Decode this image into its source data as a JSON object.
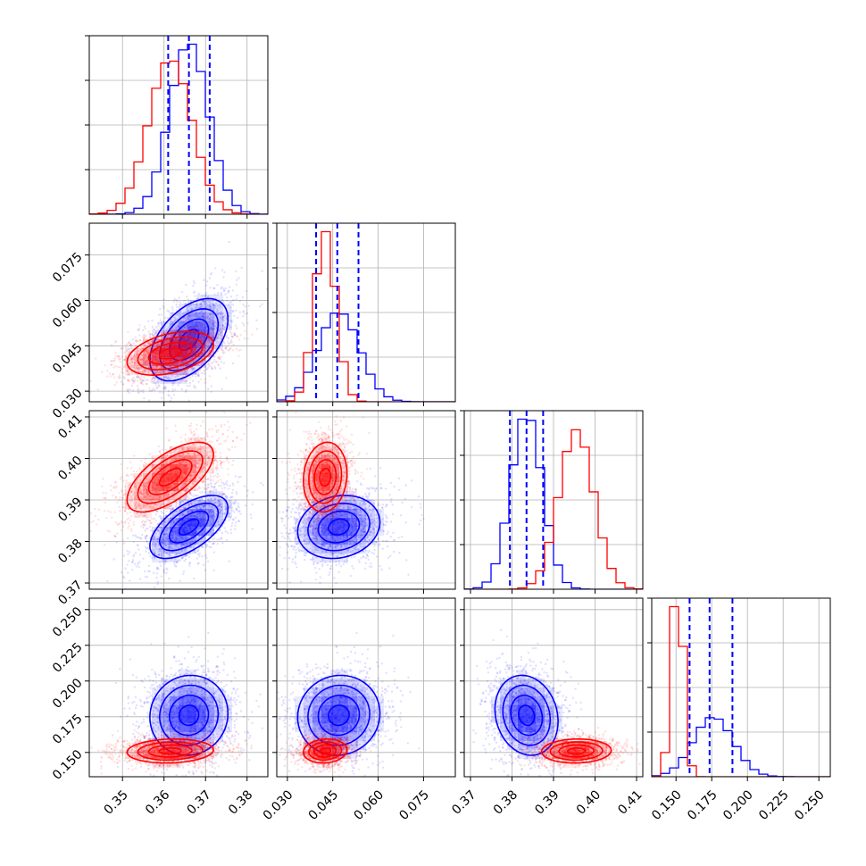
{
  "chart_data": {
    "type": "corner",
    "grid": true,
    "parameters": [
      {
        "range": [
          0.342,
          0.385
        ],
        "ticks": [
          0.35,
          0.36,
          0.37,
          0.38
        ],
        "tick_labels": [
          "0.35",
          "0.36",
          "0.37",
          "0.38"
        ]
      },
      {
        "range": [
          0.0265,
          0.0855
        ],
        "ticks": [
          0.03,
          0.045,
          0.06,
          0.075
        ],
        "tick_labels": [
          "0.030",
          "0.045",
          "0.060",
          "0.075"
        ]
      },
      {
        "range": [
          0.3685,
          0.4115
        ],
        "ticks": [
          0.37,
          0.38,
          0.39,
          0.4,
          0.41
        ],
        "tick_labels": [
          "0.37",
          "0.38",
          "0.39",
          "0.40",
          "0.41"
        ]
      },
      {
        "range": [
          0.133,
          0.258
        ],
        "ticks": [
          0.15,
          0.175,
          0.2,
          0.225,
          0.25
        ],
        "tick_labels": [
          "0.150",
          "0.175",
          "0.200",
          "0.225",
          "0.250"
        ]
      }
    ],
    "series": [
      {
        "color": "#0000ff",
        "mean": [
          0.366,
          0.047,
          0.3835,
          0.176
        ],
        "sigma": [
          0.0047,
          0.0068,
          0.0038,
          0.014
        ],
        "correlation": [
          [
            1,
            0.5,
            0.6,
            0.05
          ],
          [
            0.5,
            1,
            0.15,
            0.05
          ],
          [
            0.6,
            0.15,
            1,
            -0.15
          ],
          [
            0.05,
            0.05,
            -0.15,
            1
          ]
        ],
        "quantiles": [
          [
            0.361,
            0.366,
            0.371
          ],
          [
            0.0395,
            0.0465,
            0.0535
          ],
          [
            0.3795,
            0.3835,
            0.3875
          ],
          [
            0.1595,
            0.1735,
            0.1895
          ]
        ]
      },
      {
        "color": "#ff0000",
        "mean": [
          0.3615,
          0.0425,
          0.3955,
          0.151
        ],
        "sigma": [
          0.0052,
          0.0036,
          0.0042,
          0.0042
        ],
        "correlation": [
          [
            1,
            0.4,
            0.65,
            0.1
          ],
          [
            0.4,
            1,
            0.1,
            0.1
          ],
          [
            0.65,
            0.1,
            1,
            0.05
          ],
          [
            0.1,
            0.1,
            0.05,
            1
          ]
        ]
      }
    ],
    "quantile_lines": {
      "series_color": "#0000ff",
      "style": "dashed"
    }
  }
}
